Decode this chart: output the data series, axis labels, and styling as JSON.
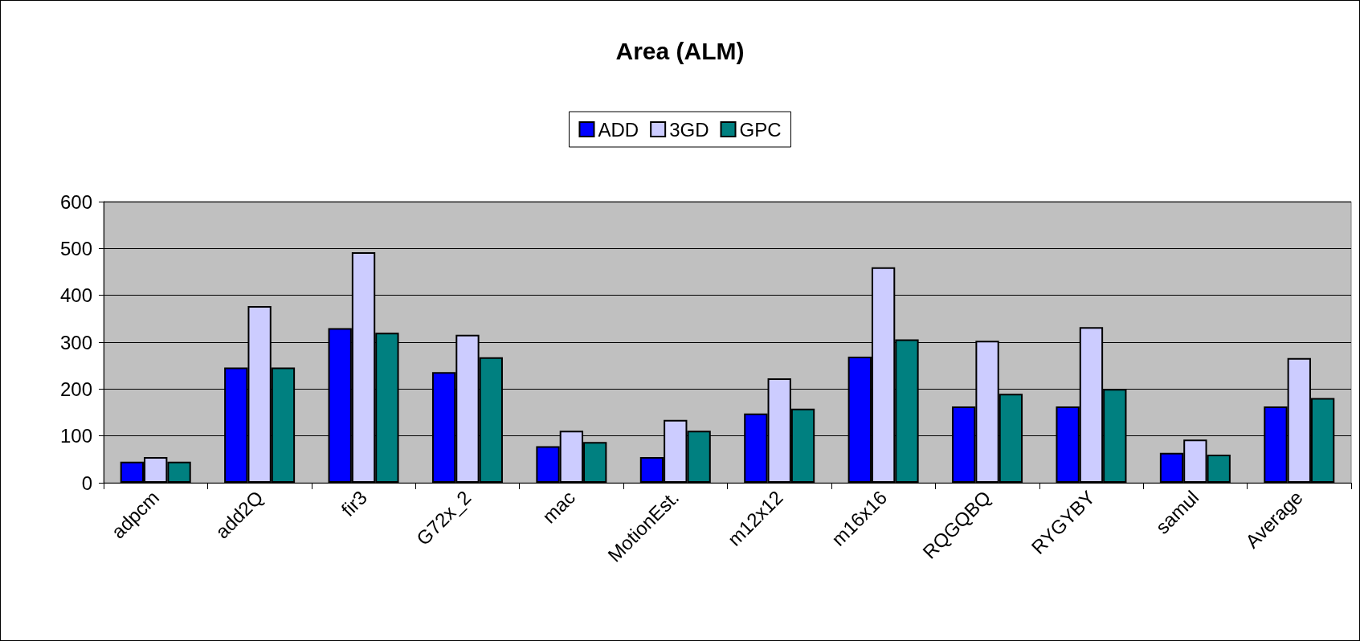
{
  "chart_data": {
    "type": "bar",
    "title": "Area (ALM)",
    "categories": [
      "adpcm",
      "add2Q",
      "fir3",
      "G72x_2",
      "mac",
      "MotionEst.",
      "m12x12",
      "m16x16",
      "RQGQBQ",
      "RYGYBY",
      "samul",
      "Average"
    ],
    "series": [
      {
        "name": "ADD",
        "color": "#0000ff",
        "values": [
          45,
          246,
          330,
          236,
          78,
          55,
          148,
          269,
          163,
          163,
          64,
          163
        ]
      },
      {
        "name": "3GD",
        "color": "#ccccff",
        "values": [
          55,
          377,
          492,
          316,
          111,
          134,
          223,
          460,
          303,
          332,
          92,
          266
        ]
      },
      {
        "name": "GPC",
        "color": "#008080",
        "values": [
          45,
          246,
          320,
          268,
          87,
          111,
          158,
          306,
          190,
          200,
          60,
          181
        ]
      }
    ],
    "ylim": [
      0,
      600
    ],
    "yticks": [
      0,
      100,
      200,
      300,
      400,
      500,
      600
    ],
    "grid": "y",
    "legend": "top"
  }
}
